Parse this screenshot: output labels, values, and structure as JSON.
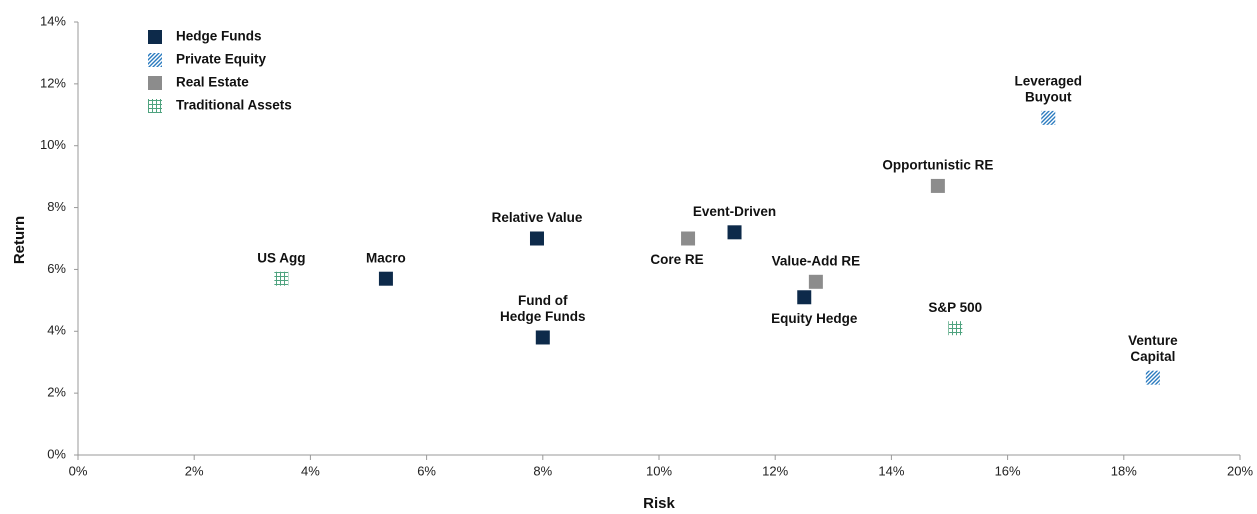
{
  "chart_data": {
    "type": "scatter",
    "xlabel": "Risk",
    "ylabel": "Return",
    "xlim": [
      0,
      20
    ],
    "ylim": [
      0,
      14
    ],
    "xticks": [
      {
        "value": 0,
        "label": "0%"
      },
      {
        "value": 2,
        "label": "2%"
      },
      {
        "value": 4,
        "label": "4%"
      },
      {
        "value": 6,
        "label": "6%"
      },
      {
        "value": 8,
        "label": "8%"
      },
      {
        "value": 10,
        "label": "10%"
      },
      {
        "value": 12,
        "label": "12%"
      },
      {
        "value": 14,
        "label": "14%"
      },
      {
        "value": 16,
        "label": "16%"
      },
      {
        "value": 18,
        "label": "18%"
      },
      {
        "value": 20,
        "label": "20%"
      }
    ],
    "yticks": [
      {
        "value": 0,
        "label": "0%"
      },
      {
        "value": 2,
        "label": "2%"
      },
      {
        "value": 4,
        "label": "4%"
      },
      {
        "value": 6,
        "label": "6%"
      },
      {
        "value": 8,
        "label": "8%"
      },
      {
        "value": 10,
        "label": "10%"
      },
      {
        "value": 12,
        "label": "12%"
      },
      {
        "value": 14,
        "label": "14%"
      }
    ],
    "legend": "upper left",
    "series": [
      {
        "name": "Hedge Funds",
        "color": "#0d2a4a",
        "pattern": "solid",
        "x": [
          5.3,
          7.9,
          8.0,
          11.3,
          12.5
        ],
        "values": [
          5.7,
          7.0,
          3.8,
          7.2,
          5.1
        ],
        "labels": [
          [
            "Macro"
          ],
          [
            "Relative Value"
          ],
          [
            "Fund of",
            "Hedge Funds"
          ],
          [
            "Event-Driven"
          ],
          [
            "Equity Hedge"
          ]
        ]
      },
      {
        "name": "Private Equity",
        "color": "#2b7bbf",
        "pattern": "diagonal",
        "x": [
          16.7,
          18.5
        ],
        "values": [
          10.9,
          2.5
        ],
        "labels": [
          [
            "Leveraged",
            "Buyout"
          ],
          [
            "Venture",
            "Capital"
          ]
        ]
      },
      {
        "name": "Real Estate",
        "color": "#8c8c8c",
        "pattern": "solid",
        "x": [
          10.5,
          12.7,
          14.8
        ],
        "values": [
          7.0,
          5.6,
          8.7
        ],
        "labels": [
          [
            "Core RE"
          ],
          [
            "Value-Add RE"
          ],
          [
            "Opportunistic RE"
          ]
        ]
      },
      {
        "name": "Traditional Assets",
        "color": "#4fa37f",
        "pattern": "grid",
        "x": [
          3.5,
          15.1
        ],
        "values": [
          5.7,
          4.1
        ],
        "labels": [
          [
            "US Agg"
          ],
          [
            "S&P 500"
          ]
        ]
      }
    ]
  }
}
